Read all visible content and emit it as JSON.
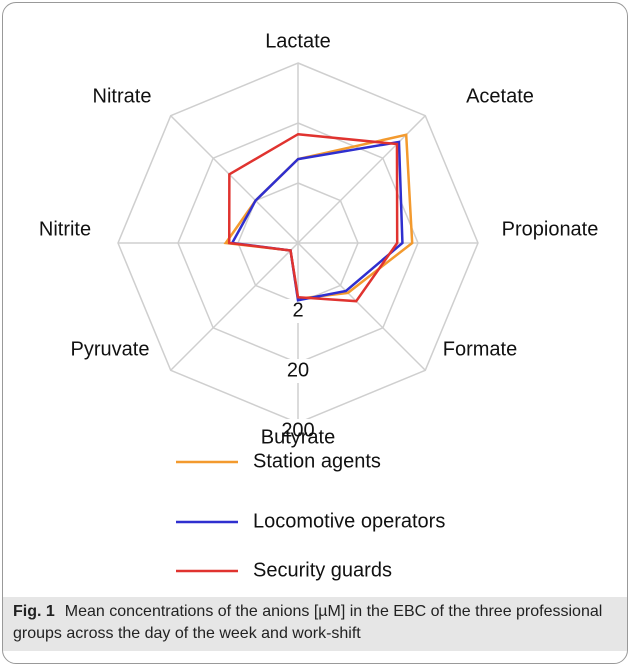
{
  "chart_data": {
    "type": "radar",
    "categories": [
      "Lactate",
      "Acetate",
      "Propionate",
      "Formate",
      "Butyrate",
      "Pyruvate",
      "Nitrite",
      "Nitrate"
    ],
    "log_scale": true,
    "rlim": [
      0.2,
      200
    ],
    "rticks": [
      2,
      20,
      200
    ],
    "grid": true,
    "legend": "bottom",
    "series": [
      {
        "name": "Station agents",
        "color": "#f39a2e",
        "values": [
          5,
          71,
          16,
          3,
          1.7,
          0.3,
          3.2,
          2
        ]
      },
      {
        "name": "Locomotive operators",
        "color": "#2f2fcf",
        "values": [
          5,
          48,
          11,
          2.7,
          1.8,
          0.3,
          2.5,
          2
        ]
      },
      {
        "name": "Security guards",
        "color": "#e0332f",
        "values": [
          13,
          43,
          9,
          4.7,
          1.6,
          0.3,
          2.8,
          8.3
        ]
      }
    ]
  },
  "caption": {
    "label": "Fig. 1",
    "text": "Mean concentrations of the anions [µM] in the EBC of the three professional groups across the day of the week and work-shift"
  }
}
